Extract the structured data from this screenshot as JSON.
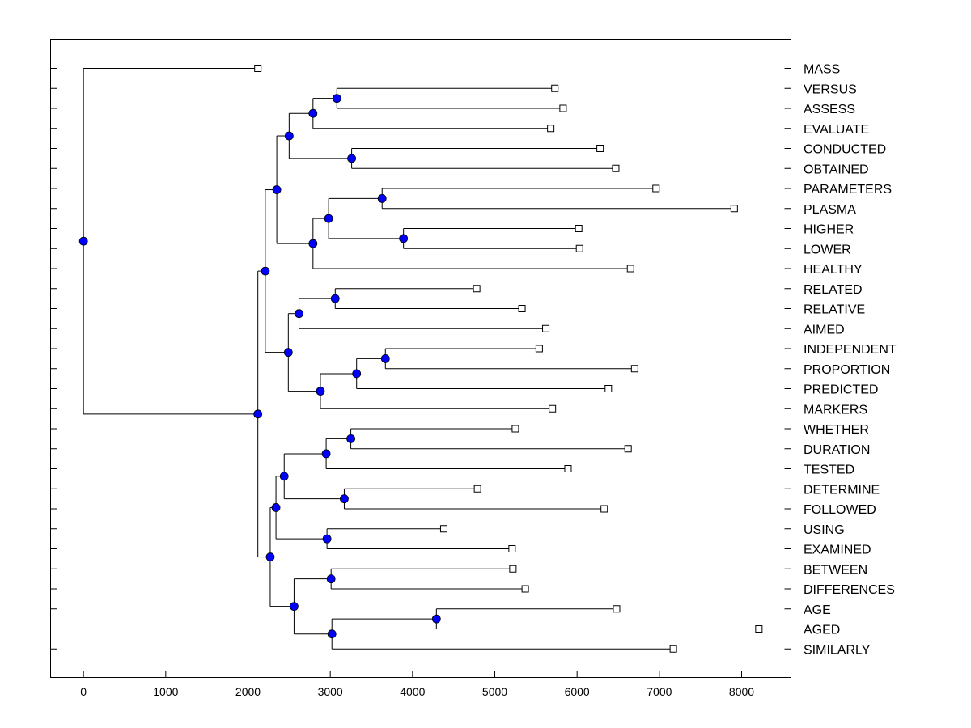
{
  "chart_data": {
    "type": "dendrogram",
    "orientation": "horizontal",
    "xlim": [
      -400,
      8600
    ],
    "x_ticks": [
      0,
      1000,
      2000,
      3000,
      4000,
      5000,
      6000,
      7000,
      8000
    ],
    "x_tick_labels": [
      "0",
      "1000",
      "2000",
      "3000",
      "4000",
      "5000",
      "6000",
      "7000",
      "8000"
    ],
    "grid": false,
    "leaves": [
      {
        "label": "MASS",
        "value": 2120
      },
      {
        "label": "VERSUS",
        "value": 5730
      },
      {
        "label": "ASSESS",
        "value": 5830
      },
      {
        "label": "EVALUATE",
        "value": 5680
      },
      {
        "label": "CONDUCTED",
        "value": 6280
      },
      {
        "label": "OBTAINED",
        "value": 6470
      },
      {
        "label": "PARAMETERS",
        "value": 6960
      },
      {
        "label": "PLASMA",
        "value": 7910
      },
      {
        "label": "HIGHER",
        "value": 6020
      },
      {
        "label": "LOWER",
        "value": 6030
      },
      {
        "label": "HEALTHY",
        "value": 6650
      },
      {
        "label": "RELATED",
        "value": 4780
      },
      {
        "label": "RELATIVE",
        "value": 5330
      },
      {
        "label": "AIMED",
        "value": 5620
      },
      {
        "label": "INDEPENDENT",
        "value": 5540
      },
      {
        "label": "PROPORTION",
        "value": 6700
      },
      {
        "label": "PREDICTED",
        "value": 6380
      },
      {
        "label": "MARKERS",
        "value": 5700
      },
      {
        "label": "WHETHER",
        "value": 5250
      },
      {
        "label": "DURATION",
        "value": 6620
      },
      {
        "label": "TESTED",
        "value": 5890
      },
      {
        "label": "DETERMINE",
        "value": 4790
      },
      {
        "label": "FOLLOWED",
        "value": 6330
      },
      {
        "label": "USING",
        "value": 4380
      },
      {
        "label": "EXAMINED",
        "value": 5210
      },
      {
        "label": "BETWEEN",
        "value": 5220
      },
      {
        "label": "DIFFERENCES",
        "value": 5370
      },
      {
        "label": "AGE",
        "value": 6480
      },
      {
        "label": "AGED",
        "value": 8210
      },
      {
        "label": "SIMILARLY",
        "value": 7170
      }
    ],
    "nodes": [
      {
        "id": "n1",
        "value": 3080,
        "children": [
          "VERSUS",
          "ASSESS"
        ]
      },
      {
        "id": "n2",
        "value": 2790,
        "children": [
          "n1",
          "EVALUATE"
        ]
      },
      {
        "id": "n3",
        "value": 3260,
        "children": [
          "CONDUCTED",
          "OBTAINED"
        ]
      },
      {
        "id": "n4",
        "value": 2500,
        "children": [
          "n2",
          "n3"
        ]
      },
      {
        "id": "n5",
        "value": 3890,
        "children": [
          "HIGHER",
          "LOWER"
        ]
      },
      {
        "id": "n6",
        "value": 3630,
        "children": [
          "PARAMETERS",
          "PLASMA"
        ]
      },
      {
        "id": "n7",
        "value": 2980,
        "children": [
          "n6",
          "n5"
        ]
      },
      {
        "id": "n8",
        "value": 2790,
        "children": [
          "n7",
          "HEALTHY"
        ]
      },
      {
        "id": "n9",
        "value": 2350,
        "children": [
          "n4",
          "n8"
        ]
      },
      {
        "id": "n10",
        "value": 3060,
        "children": [
          "RELATED",
          "RELATIVE"
        ]
      },
      {
        "id": "n11",
        "value": 2620,
        "children": [
          "n10",
          "AIMED"
        ]
      },
      {
        "id": "n12",
        "value": 3670,
        "children": [
          "INDEPENDENT",
          "PROPORTION"
        ]
      },
      {
        "id": "n13",
        "value": 3320,
        "children": [
          "n12",
          "PREDICTED"
        ]
      },
      {
        "id": "n14",
        "value": 2880,
        "children": [
          "n13",
          "MARKERS"
        ]
      },
      {
        "id": "n15",
        "value": 2490,
        "children": [
          "n11",
          "n14"
        ]
      },
      {
        "id": "n16",
        "value": 2210,
        "children": [
          "n9",
          "n15"
        ]
      },
      {
        "id": "n17",
        "value": 3250,
        "children": [
          "WHETHER",
          "DURATION"
        ]
      },
      {
        "id": "n18",
        "value": 2950,
        "children": [
          "n17",
          "TESTED"
        ]
      },
      {
        "id": "n19",
        "value": 3170,
        "children": [
          "DETERMINE",
          "FOLLOWED"
        ]
      },
      {
        "id": "n20",
        "value": 2440,
        "children": [
          "n18",
          "n19"
        ]
      },
      {
        "id": "n21",
        "value": 2960,
        "children": [
          "USING",
          "EXAMINED"
        ]
      },
      {
        "id": "n22",
        "value": 2340,
        "children": [
          "n20",
          "n21"
        ]
      },
      {
        "id": "n23",
        "value": 3010,
        "children": [
          "BETWEEN",
          "DIFFERENCES"
        ]
      },
      {
        "id": "n24",
        "value": 4290,
        "children": [
          "AGE",
          "AGED"
        ]
      },
      {
        "id": "n25",
        "value": 3020,
        "children": [
          "n24",
          "SIMILARLY"
        ]
      },
      {
        "id": "n26",
        "value": 2560,
        "children": [
          "n23",
          "n25"
        ]
      },
      {
        "id": "n27",
        "value": 2270,
        "children": [
          "n22",
          "n26"
        ]
      },
      {
        "id": "n28",
        "value": 2120,
        "children": [
          "n16",
          "n27"
        ]
      },
      {
        "id": "n29",
        "value": 0,
        "children": [
          "MASS",
          "n28"
        ]
      }
    ],
    "colors": {
      "node_fill": "#0000ff",
      "leaf_fill": "#ffffff",
      "line": "#000000"
    }
  }
}
